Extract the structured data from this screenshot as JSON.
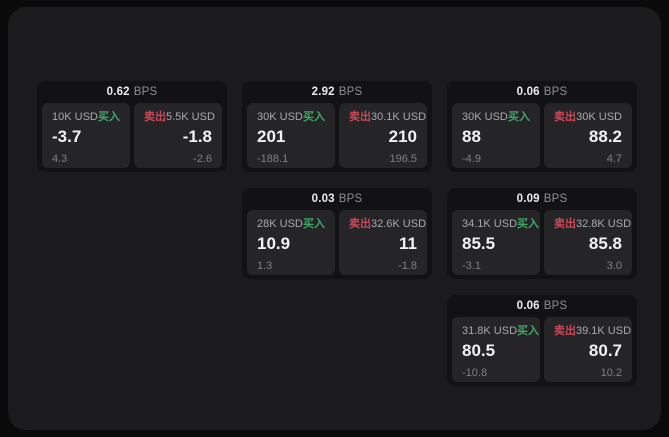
{
  "labels": {
    "buy": "买入",
    "sell": "卖出",
    "bps_unit": "BPS"
  },
  "colors": {
    "page_background": "#0a0a0b",
    "surface_background": "#1b1b1d",
    "card_background": "#121214",
    "tile_background": "#252528",
    "buy": "#3ea865",
    "sell": "#cb4758",
    "primary_text": "#f2f2f4",
    "muted_text": "#a9a9ad",
    "dim_text": "#7f7f84"
  },
  "cards": [
    {
      "row": 1,
      "col": 1,
      "bps": "0.62",
      "buy": {
        "amount": "10K USD",
        "price": "-3.7",
        "change": "4.3"
      },
      "sell": {
        "amount": "5.5K USD",
        "price": "-1.8",
        "change": "-2.6"
      }
    },
    {
      "row": 1,
      "col": 2,
      "bps": "2.92",
      "buy": {
        "amount": "30K USD",
        "price": "201",
        "change": "-188.1"
      },
      "sell": {
        "amount": "30.1K USD",
        "price": "210",
        "change": "196.5"
      }
    },
    {
      "row": 1,
      "col": 3,
      "bps": "0.06",
      "buy": {
        "amount": "30K USD",
        "price": "88",
        "change": "-4.9"
      },
      "sell": {
        "amount": "30K USD",
        "price": "88.2",
        "change": "4.7"
      }
    },
    {
      "row": 2,
      "col": 2,
      "bps": "0.03",
      "buy": {
        "amount": "28K USD",
        "price": "10.9",
        "change": "1.3"
      },
      "sell": {
        "amount": "32.6K USD",
        "price": "11",
        "change": "-1.8"
      }
    },
    {
      "row": 2,
      "col": 3,
      "bps": "0.09",
      "buy": {
        "amount": "34.1K USD",
        "price": "85.5",
        "change": "-3.1"
      },
      "sell": {
        "amount": "32.8K USD",
        "price": "85.8",
        "change": "3.0"
      }
    },
    {
      "row": 3,
      "col": 3,
      "bps": "0.06",
      "buy": {
        "amount": "31.8K USD",
        "price": "80.5",
        "change": "-10.8"
      },
      "sell": {
        "amount": "39.1K USD",
        "price": "80.7",
        "change": "10.2"
      }
    }
  ]
}
